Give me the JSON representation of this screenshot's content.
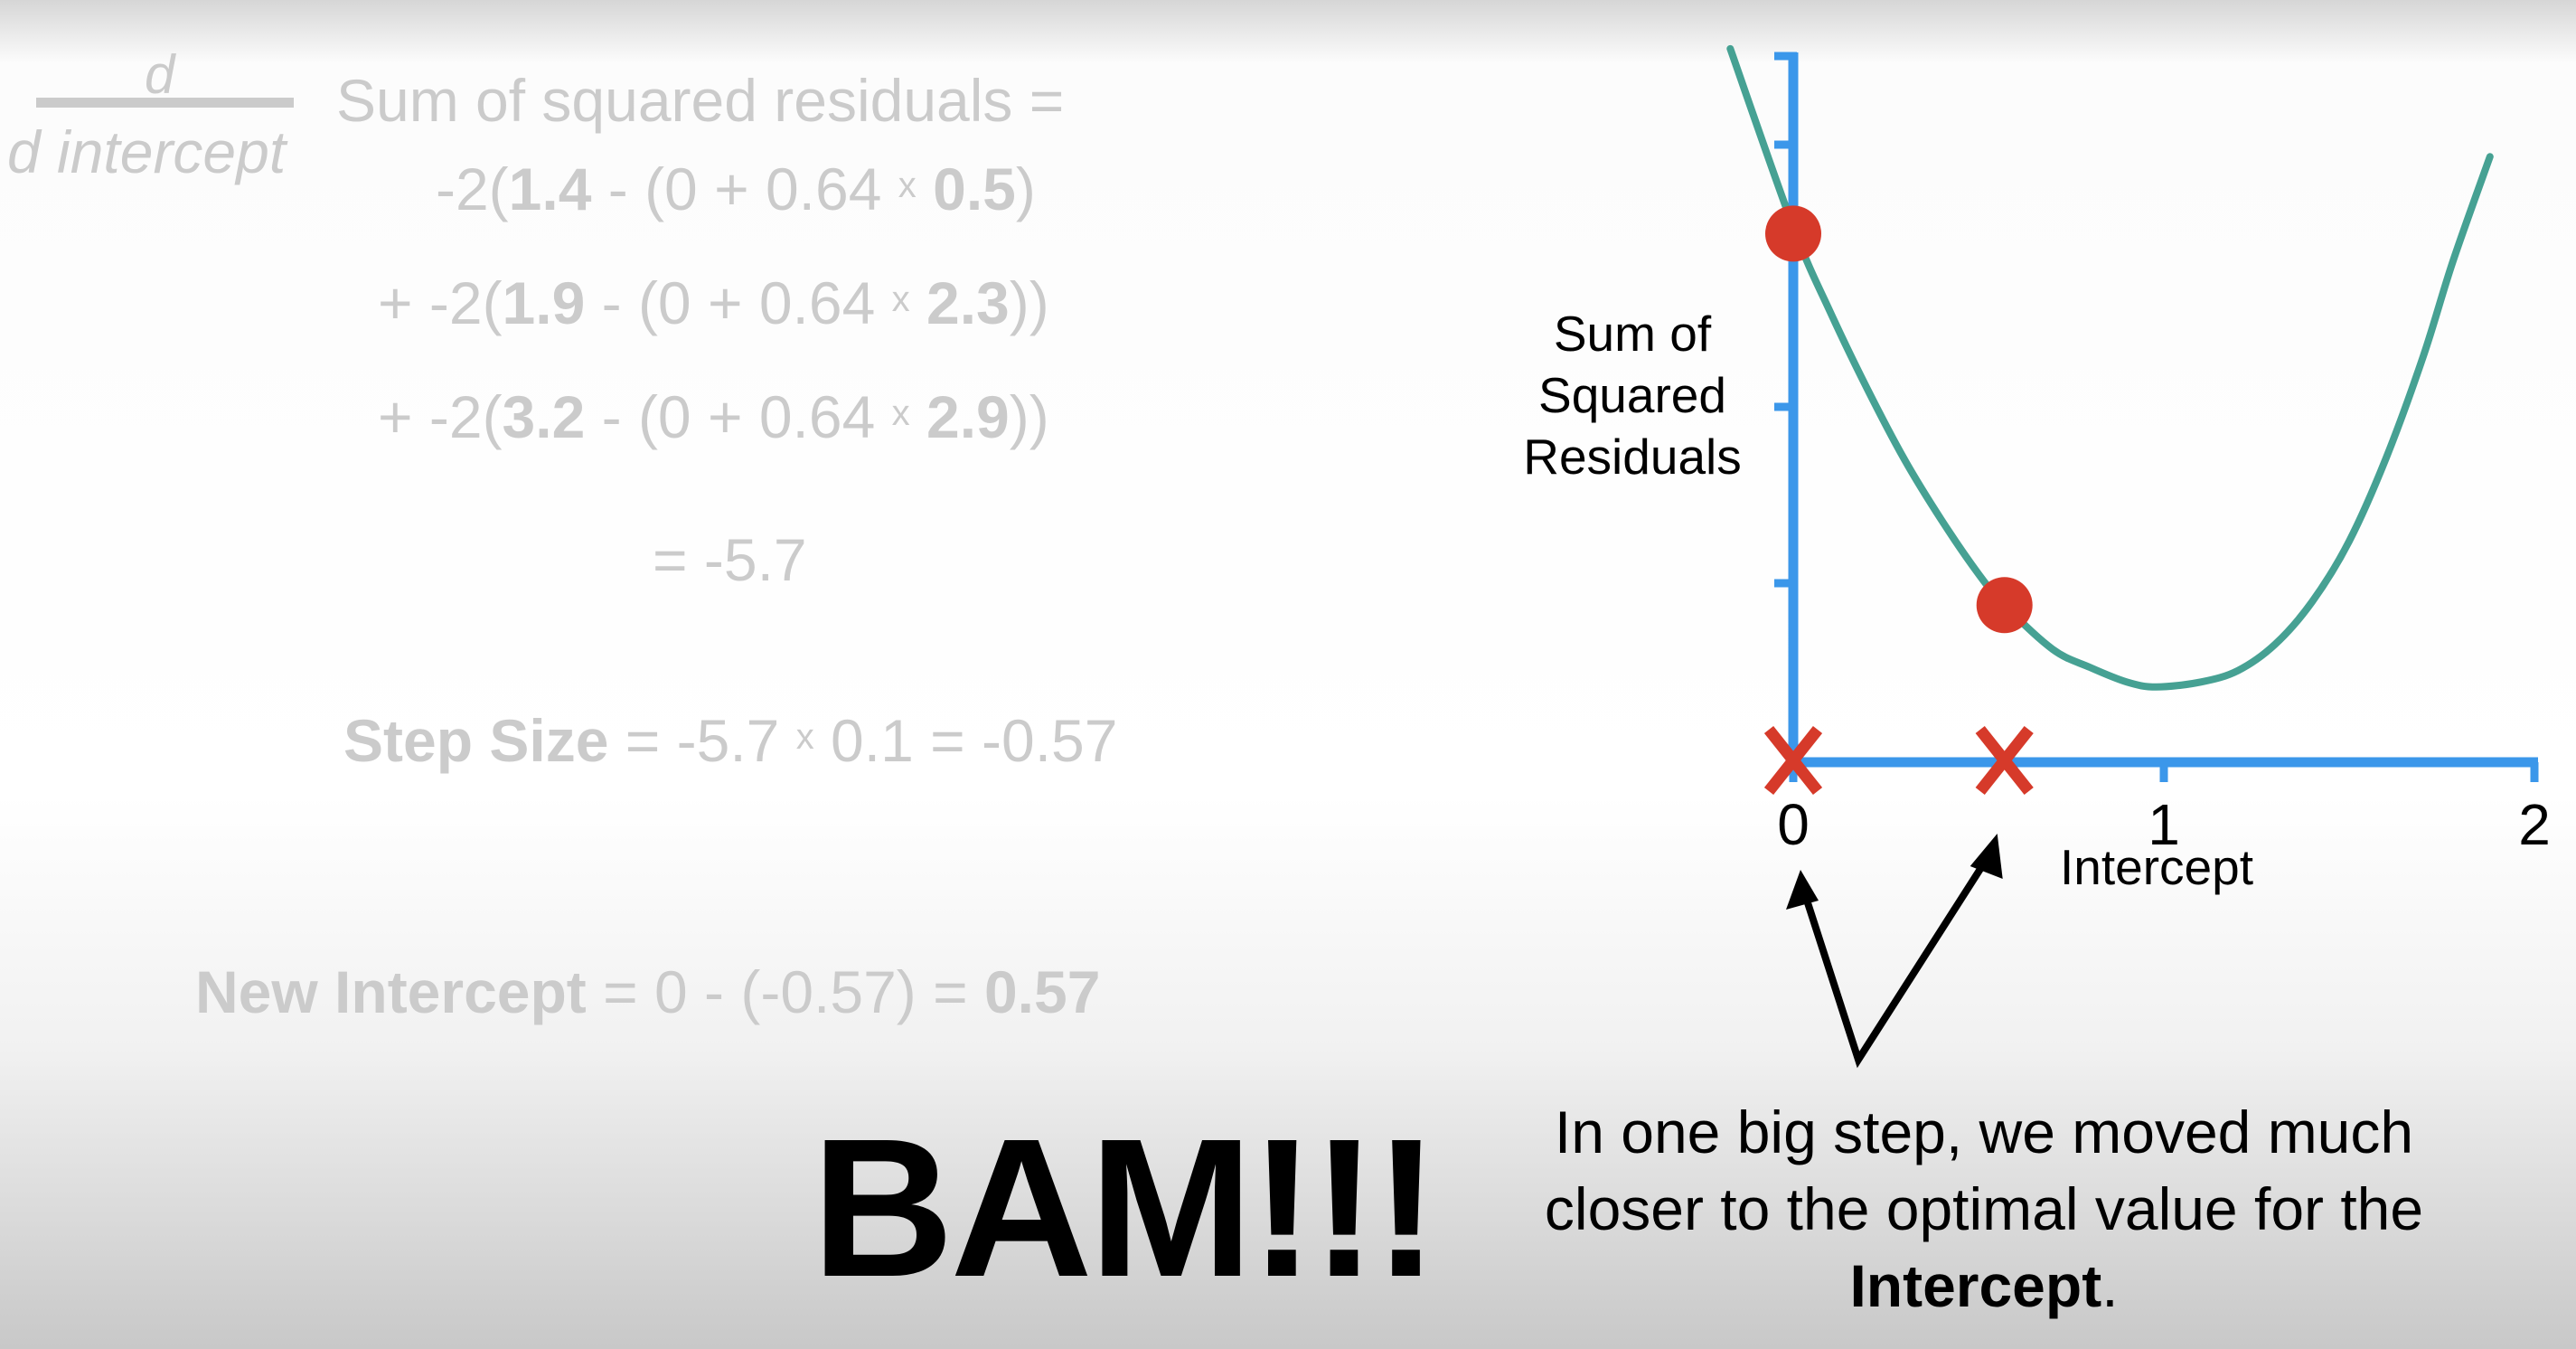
{
  "derivative": {
    "numerator": "d",
    "denominator": "d intercept",
    "head": "Sum of squared residuals =",
    "lines": [
      [
        {
          "t": "-2("
        },
        {
          "t": "1.4",
          "b": true
        },
        {
          "t": " - (0 + 0.64 "
        },
        {
          "t": "x",
          "s": true
        },
        {
          "t": " "
        },
        {
          "t": "0.5",
          "b": true
        },
        {
          "t": ")"
        }
      ],
      [
        {
          "t": "+ -2("
        },
        {
          "t": "1.9",
          "b": true
        },
        {
          "t": " - (0 + 0.64 "
        },
        {
          "t": "x",
          "s": true
        },
        {
          "t": " "
        },
        {
          "t": "2.3",
          "b": true
        },
        {
          "t": "))"
        }
      ],
      [
        {
          "t": "+ -2("
        },
        {
          "t": "3.2",
          "b": true
        },
        {
          "t": " - (0 + 0.64 "
        },
        {
          "t": "x",
          "s": true
        },
        {
          "t": " "
        },
        {
          "t": "2.9",
          "b": true
        },
        {
          "t": "))"
        }
      ]
    ],
    "result": "= -5.7"
  },
  "step_size": [
    {
      "t": "Step Size",
      "b": true
    },
    {
      "t": " = -5.7 "
    },
    {
      "t": "x",
      "s": true
    },
    {
      "t": " 0.1 = -0.57"
    }
  ],
  "new_intercept": [
    {
      "t": "New Intercept",
      "b": true
    },
    {
      "t": " = 0 - (-0.57) = "
    },
    {
      "t": "0.57",
      "b": true
    }
  ],
  "bam": "BAM!!!",
  "caption": [
    {
      "t": "In one big step, we moved much closer to the optimal value for the "
    },
    {
      "t": "Intercept",
      "b": true
    },
    {
      "t": "."
    }
  ],
  "colors": {
    "axis": "#3b97ea",
    "curve": "#46a193",
    "point": "#d63a2a",
    "arrow": "#000000",
    "faded_text": "#cbcbcb"
  },
  "chart_data": {
    "type": "line",
    "xlabel": "Intercept",
    "ylabel_lines": [
      "Sum of",
      "Squared",
      "Residuals"
    ],
    "xlim": [
      0,
      2
    ],
    "x_ticks": [
      "0",
      "1",
      "2"
    ],
    "curve": {
      "x": [
        -0.17,
        0,
        0.1,
        0.2,
        0.3,
        0.4,
        0.5,
        0.57,
        0.7,
        0.8,
        0.9,
        0.98,
        1.1,
        1.2,
        1.3,
        1.4,
        1.5,
        1.6,
        1.7,
        1.78,
        1.88
      ],
      "y": [
        4.36,
        3.27,
        2.75,
        2.28,
        1.85,
        1.48,
        1.15,
        0.96,
        0.69,
        0.58,
        0.49,
        0.46,
        0.49,
        0.56,
        0.72,
        0.98,
        1.35,
        1.86,
        2.48,
        3.06,
        3.7
      ]
    },
    "points": [
      {
        "x": 0,
        "y": 3.23
      },
      {
        "x": 0.57,
        "y": 0.96
      }
    ],
    "x_markers": [
      {
        "x": 0,
        "label": "X"
      },
      {
        "x": 0.57,
        "label": "X"
      }
    ]
  }
}
